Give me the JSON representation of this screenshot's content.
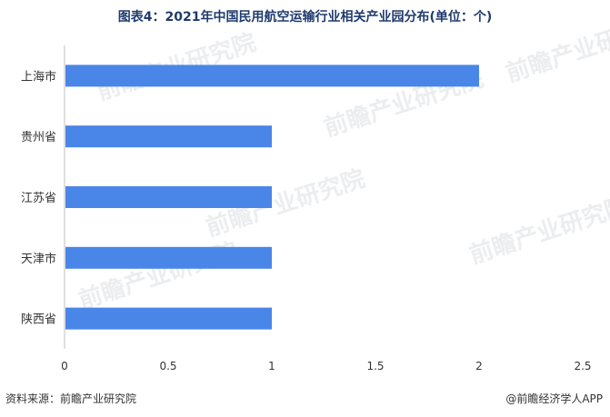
{
  "chart_data": {
    "type": "bar",
    "orientation": "horizontal",
    "title": "图表4：2021年中国民用航空运输行业相关产业园分布(单位：个)",
    "categories": [
      "上海市",
      "贵州省",
      "江苏省",
      "天津市",
      "陕西省"
    ],
    "values": [
      2,
      1,
      1,
      1,
      1
    ],
    "xlim": [
      0,
      2.5
    ],
    "xticks": [
      "0",
      "0.5",
      "1",
      "1.5",
      "2",
      "2.5"
    ],
    "xlabel": "",
    "ylabel": "",
    "grid": false,
    "bar_color": "#4a86e8"
  },
  "footer": {
    "source": "资料来源：前瞻产业研究院",
    "brand": "@前瞻经济学人APP"
  },
  "watermark": "前瞻产业研究院"
}
